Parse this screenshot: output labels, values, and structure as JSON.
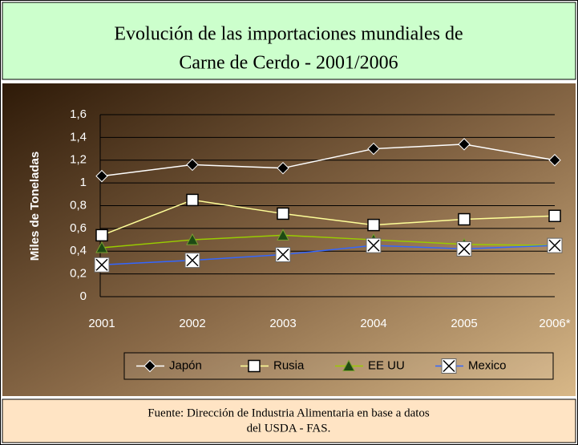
{
  "chart_data": {
    "type": "line",
    "title": [
      "Evolución de las importaciones mundiales de",
      "Carne de Cerdo - 2001/2006"
    ],
    "ylabel": "Miles de Toneladas",
    "categories": [
      "2001",
      "2002",
      "2003",
      "2004",
      "2005",
      "2006*"
    ],
    "series": [
      {
        "name": "Japón",
        "color": "#ffffff",
        "marker": "diamond",
        "values": [
          1.06,
          1.16,
          1.13,
          1.3,
          1.34,
          1.2
        ]
      },
      {
        "name": "Rusia",
        "color": "#ffff99",
        "marker": "square",
        "values": [
          0.54,
          0.85,
          0.73,
          0.63,
          0.68,
          0.71
        ]
      },
      {
        "name": "EE UU",
        "color": "#99cc00",
        "marker": "triangle",
        "values": [
          0.43,
          0.5,
          0.54,
          0.5,
          0.46,
          0.45
        ]
      },
      {
        "name": "Mexico",
        "color": "#3366ff",
        "marker": "x",
        "values": [
          0.28,
          0.32,
          0.37,
          0.45,
          0.42,
          0.45
        ]
      }
    ],
    "ylim": [
      0,
      1.6
    ],
    "yticks": [
      0,
      {
        "value": 0.2,
        "label": "0,2"
      },
      {
        "value": 0.4,
        "label": "0,4"
      },
      {
        "value": 0.6,
        "label": "0,6"
      },
      {
        "value": 0.8,
        "label": "0,8"
      },
      1,
      {
        "value": 1.2,
        "label": "1,2"
      },
      {
        "value": 1.4,
        "label": "1,4"
      },
      {
        "value": 1.6,
        "label": "1,6"
      }
    ],
    "grid": true,
    "legend": "bottom",
    "source": [
      "Fuente: Dirección de Industria Alimentaria en base a datos",
      "del USDA - FAS."
    ]
  }
}
